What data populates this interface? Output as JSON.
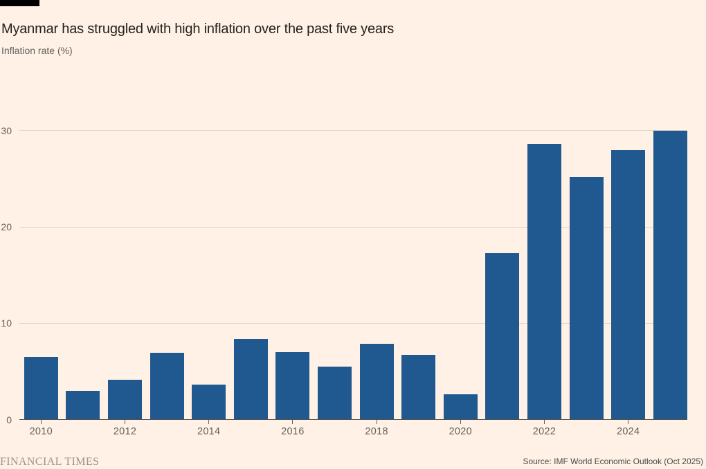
{
  "chart_data": {
    "type": "bar",
    "title": "Myanmar has struggled with high inflation over the past five years",
    "subtitle": "Inflation rate (%)",
    "categories": [
      2010,
      2011,
      2012,
      2013,
      2014,
      2015,
      2016,
      2017,
      2018,
      2019,
      2020,
      2021,
      2022,
      2023,
      2024,
      2025
    ],
    "values": [
      6.5,
      3.0,
      4.1,
      6.9,
      3.6,
      8.4,
      7.0,
      5.5,
      7.9,
      6.7,
      2.6,
      17.3,
      28.6,
      25.2,
      28.0,
      30.0
    ],
    "xlabel": "",
    "ylabel": "Inflation rate (%)",
    "ylim": [
      0,
      30
    ],
    "yticks": [
      0,
      10,
      20,
      30
    ],
    "xtick_labels": [
      "2010",
      "2012",
      "2014",
      "2016",
      "2018",
      "2020",
      "2022",
      "2024"
    ],
    "xtick_step": 2,
    "grid": "horizontal",
    "legend": "none"
  },
  "colors": {
    "background": "#FFF1E5",
    "bar": "#20598F",
    "gridline": "#E3D4C7",
    "axis": "#57514D",
    "title_text": "#26211D",
    "muted_text": "#66605C",
    "brand_text": "#9D948A",
    "tag": "#000000"
  },
  "footer": {
    "brand": "FINANCIAL TIMES",
    "source": "Source: IMF World Economic Outlook (Oct 2025)"
  }
}
